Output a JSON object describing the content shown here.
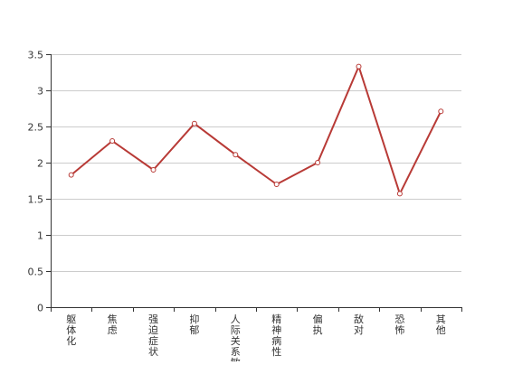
{
  "chart_data": {
    "type": "line",
    "categories": [
      "躯体化",
      "焦虑",
      "强迫症状",
      "抑郁",
      "人际关系敏感",
      "精神病性",
      "偏执",
      "敌对",
      "恐怖",
      "其他"
    ],
    "series": [
      {
        "values": [
          1.83,
          2.3,
          1.9,
          2.54,
          2.11,
          1.7,
          2.0,
          3.33,
          1.57,
          2.71
        ]
      }
    ],
    "yticks": [
      0,
      0.5,
      1,
      1.5,
      2,
      2.5,
      3,
      3.5
    ],
    "ytick_labels": [
      "0",
      "0.5",
      "1",
      "1.5",
      "2",
      "2.5",
      "3",
      "3.5"
    ],
    "ylim": [
      0,
      3.5
    ],
    "grid": true,
    "title": "",
    "xlabel": "",
    "ylabel": "",
    "colors": {
      "line": "#b83a36",
      "marker_fill": "#ffffff",
      "grid": "#cccccc",
      "axis": "#333333"
    }
  }
}
